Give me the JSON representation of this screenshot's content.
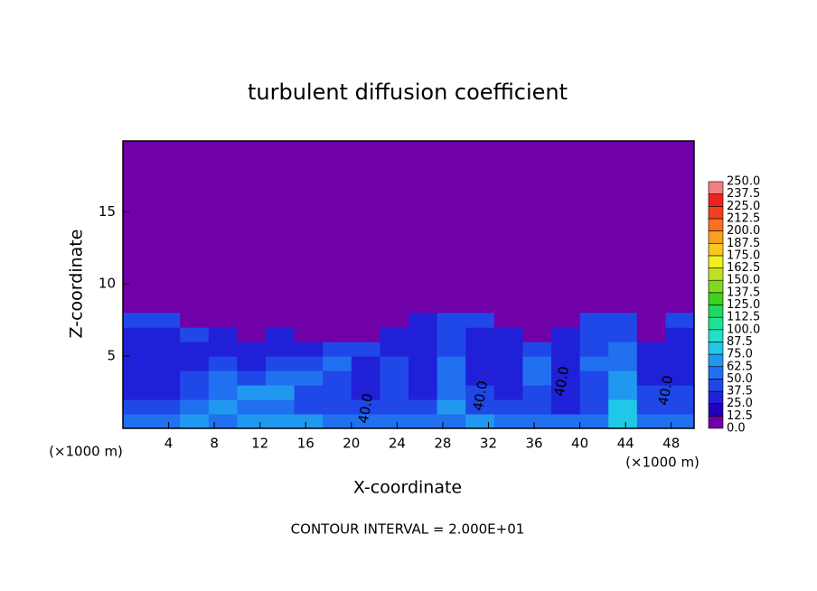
{
  "chart_data": {
    "type": "contour",
    "title": "turbulent diffusion coefficient",
    "x_label": "X-coordinate",
    "y_label": "Z-coordinate",
    "x_unit_labels": [
      "(×1000 m)",
      "(×1000 m)"
    ],
    "footer": "CONTOUR INTERVAL = 2.000E+01",
    "contour_labels": [
      "40.0",
      "40.0",
      "40.0",
      "40.0"
    ],
    "xlim": [
      0,
      50
    ],
    "ylim": [
      0,
      19.9
    ],
    "xticks": [
      4,
      8,
      12,
      16,
      20,
      24,
      28,
      32,
      36,
      40,
      44,
      48
    ],
    "yticks": [
      5,
      10,
      15
    ],
    "x": [
      1.25,
      3.75,
      6.25,
      8.75,
      11.25,
      13.75,
      16.25,
      18.75,
      21.25,
      23.75,
      26.25,
      28.75,
      31.25,
      33.75,
      36.25,
      38.75,
      41.25,
      43.75,
      46.25,
      48.75
    ],
    "y": [
      0.5,
      1.5,
      2.5,
      3.5,
      4.5,
      5.5,
      6.5,
      7.5
    ],
    "z": [
      [
        55,
        60,
        65,
        60,
        70,
        65,
        65,
        60,
        55,
        60,
        55,
        60,
        65,
        55,
        60,
        55,
        60,
        80,
        55,
        60
      ],
      [
        40,
        40,
        50,
        65,
        60,
        55,
        45,
        40,
        40,
        45,
        40,
        65,
        45,
        40,
        45,
        35,
        40,
        75,
        40,
        40
      ],
      [
        35,
        35,
        45,
        60,
        70,
        65,
        45,
        40,
        35,
        40,
        35,
        60,
        40,
        35,
        40,
        35,
        40,
        70,
        40,
        40
      ],
      [
        35,
        30,
        40,
        50,
        45,
        60,
        60,
        45,
        35,
        40,
        30,
        55,
        35,
        30,
        60,
        35,
        40,
        65,
        35,
        35
      ],
      [
        30,
        30,
        35,
        40,
        35,
        40,
        45,
        50,
        35,
        40,
        30,
        50,
        35,
        30,
        55,
        35,
        50,
        60,
        35,
        35
      ],
      [
        30,
        30,
        30,
        35,
        30,
        35,
        35,
        40,
        40,
        35,
        30,
        45,
        30,
        30,
        45,
        30,
        40,
        55,
        30,
        30
      ],
      [
        35,
        35,
        40,
        30,
        0,
        30,
        0,
        0,
        0,
        35,
        35,
        45,
        35,
        30,
        0,
        30,
        40,
        45,
        0,
        35
      ],
      [
        40,
        45,
        0,
        0,
        0,
        0,
        0,
        0,
        0,
        0,
        35,
        40,
        40,
        0,
        0,
        0,
        45,
        40,
        0,
        40
      ]
    ],
    "levels": [
      {
        "value": 0,
        "label": "0.0"
      },
      12.5,
      {
        "value": 25,
        "label": "25.0"
      },
      37.5,
      {
        "value": 50,
        "label": "50.0"
      },
      62.5,
      {
        "value": 75,
        "label": "75.0"
      },
      87.5,
      {
        "value": 100,
        "label": "100.0"
      },
      112.5,
      {
        "value": 125,
        "label": "125.0"
      },
      137.5,
      {
        "value": 150,
        "label": "150.0"
      },
      162.5,
      {
        "value": 175,
        "label": "175.0"
      },
      187.5,
      {
        "value": 200,
        "label": "200.0"
      },
      212.5,
      {
        "value": 225,
        "label": "225.0"
      },
      237.5,
      {
        "value": 250,
        "label": "250.0"
      }
    ],
    "colors": [
      "#7000a8",
      "#2000b8",
      "#2020d8",
      "#2048e8",
      "#2070f0",
      "#2098f0",
      "#20c8e8",
      "#20e0c8",
      "#20e098",
      "#20d860",
      "#40d020",
      "#80d820",
      "#c0e020",
      "#f0f020",
      "#f8c820",
      "#f8a020",
      "#f87020",
      "#f04020",
      "#f02020",
      "#f08080"
    ]
  }
}
